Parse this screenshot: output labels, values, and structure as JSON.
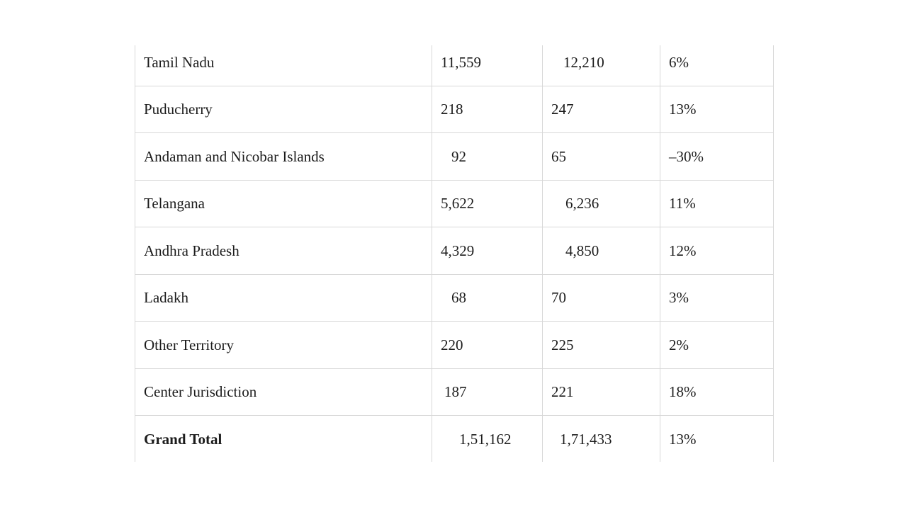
{
  "page": {
    "background_color": "#ffffff",
    "text_color": "#1c1c1c",
    "table_border_color": "#d8d8d8"
  },
  "table": {
    "description": "State-wise values table, header rows cut off above the visible crop",
    "rows": [
      {
        "state": "Tamil Nadu",
        "value_prev": "11,559",
        "value_curr": "12,210",
        "growth": "6%"
      },
      {
        "state": "Puducherry",
        "value_prev": "218",
        "value_curr": "247",
        "growth": "13%"
      },
      {
        "state": "Andaman and Nicobar Islands",
        "value_prev": "92",
        "value_curr": "65",
        "growth": "–30%"
      },
      {
        "state": "Telangana",
        "value_prev": "5,622",
        "value_curr": "6,236",
        "growth": "11%"
      },
      {
        "state": "Andhra Pradesh",
        "value_prev": "4,329",
        "value_curr": "4,850",
        "growth": "12%"
      },
      {
        "state": "Ladakh",
        "value_prev": "68",
        "value_curr": "70",
        "growth": "3%"
      },
      {
        "state": "Other Territory",
        "value_prev": "220",
        "value_curr": "225",
        "growth": "2%"
      },
      {
        "state": "Center Jurisdiction",
        "value_prev": "187",
        "value_curr": "221",
        "growth": "18%"
      }
    ],
    "total_row": {
      "label": "Grand Total",
      "value_prev": "1,51,162",
      "value_curr": "1,71,433",
      "growth": "13%"
    }
  }
}
